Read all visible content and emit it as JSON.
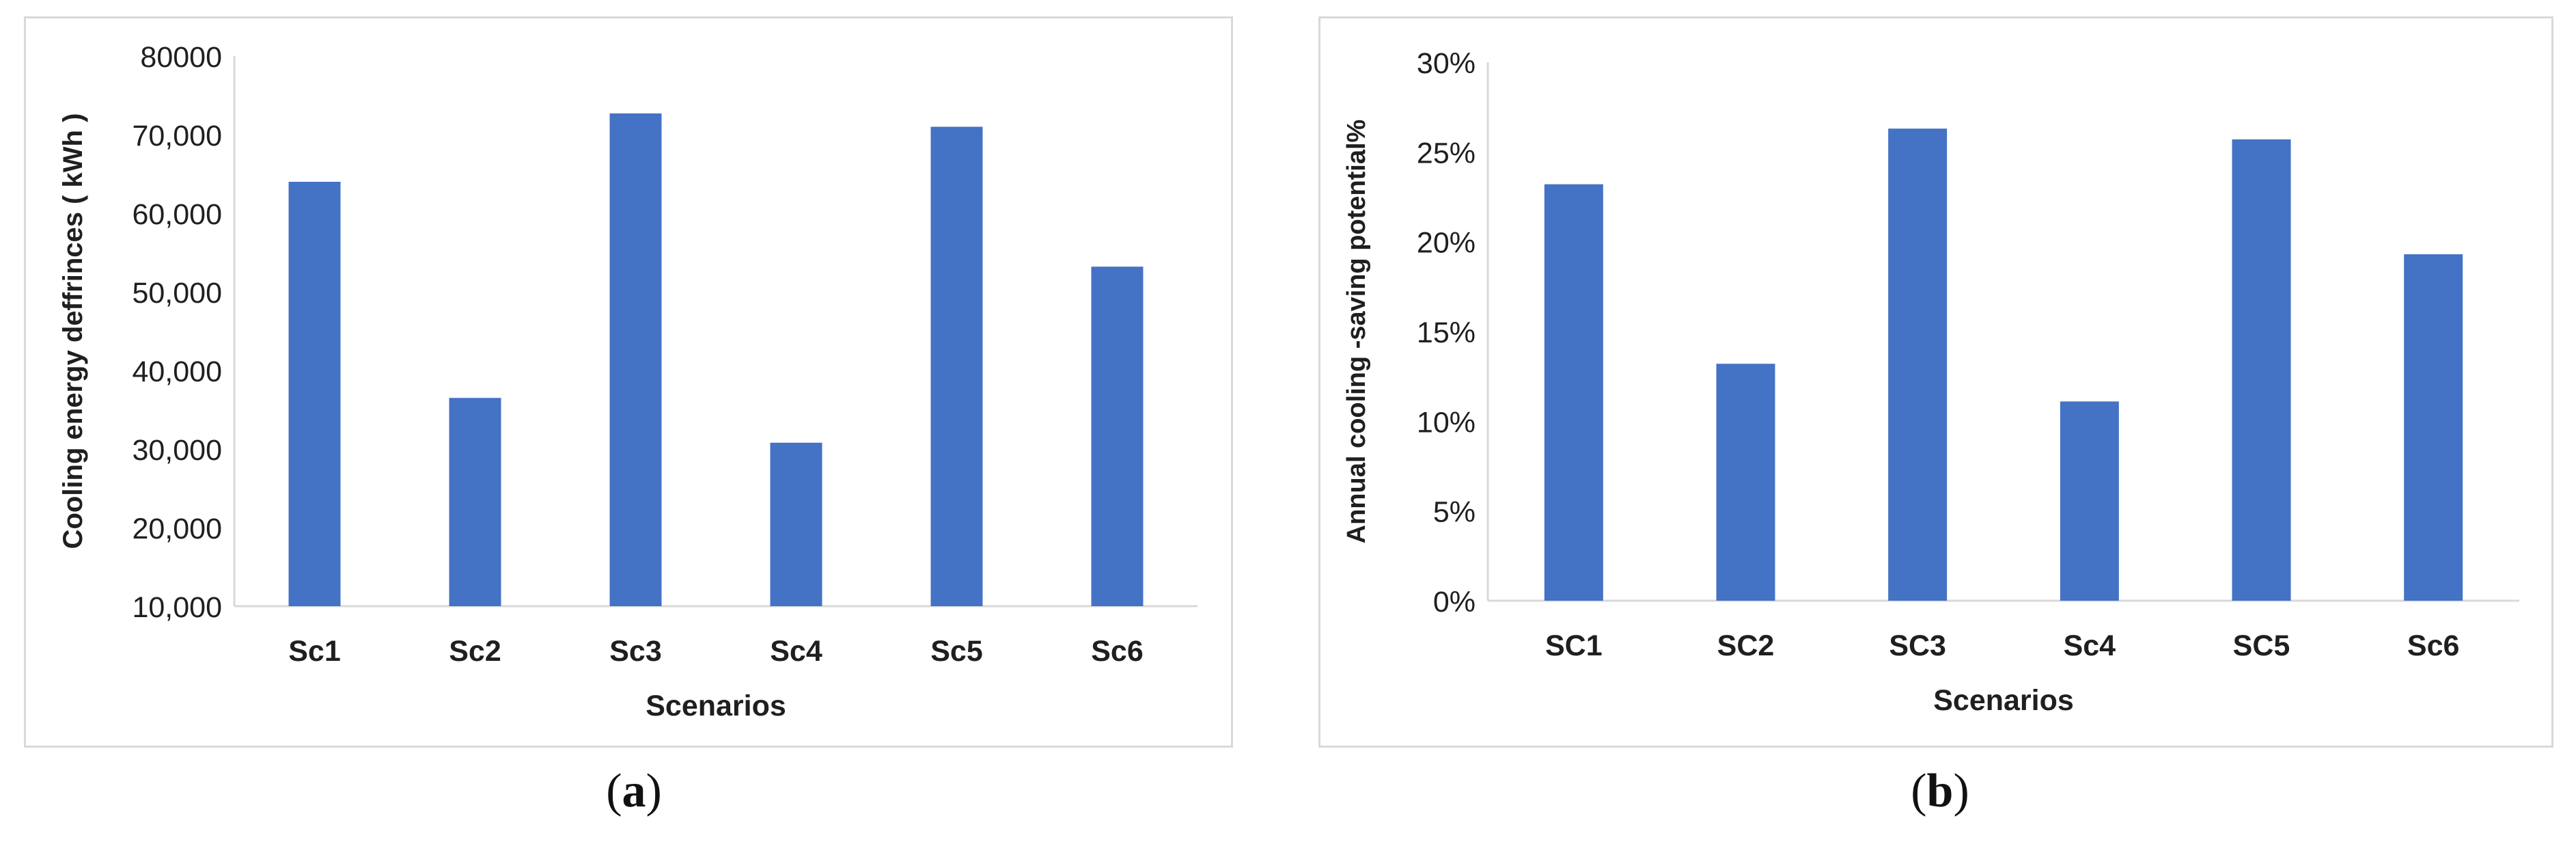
{
  "chart_data": [
    {
      "type": "bar",
      "categories": [
        "Sc1",
        "Sc2",
        "Sc3",
        "Sc4",
        "Sc5",
        "Sc6"
      ],
      "values": [
        64000,
        36500,
        72700,
        30800,
        71000,
        53200
      ],
      "title": "",
      "xlabel": "Scenarios",
      "ylabel": "Cooling energy deffrinces ( kWh )",
      "ylim": [
        10000,
        80000
      ],
      "yticks": [
        "10,000",
        "20,000",
        "30,000",
        "40,000",
        "50,000",
        "60,000",
        "70,000",
        "80000"
      ],
      "color": "#4472c4",
      "grid": false
    },
    {
      "type": "bar",
      "categories": [
        "SC1",
        "SC2",
        "SC3",
        "Sc4",
        "SC5",
        "Sc6"
      ],
      "values": [
        0.232,
        0.132,
        0.263,
        0.111,
        0.257,
        0.193
      ],
      "title": "",
      "xlabel": "Scenarios",
      "ylabel": "Annual cooling -saving potential%",
      "ylim": [
        0,
        0.3
      ],
      "yticks": [
        "0%",
        "5%",
        "10%",
        "15%",
        "20%",
        "25%",
        "30%"
      ],
      "color": "#4472c4",
      "grid": false
    }
  ],
  "captions": {
    "a": {
      "open": "(",
      "letter": "a",
      "close": ")"
    },
    "b": {
      "open": "(",
      "letter": "b",
      "close": ")"
    }
  }
}
